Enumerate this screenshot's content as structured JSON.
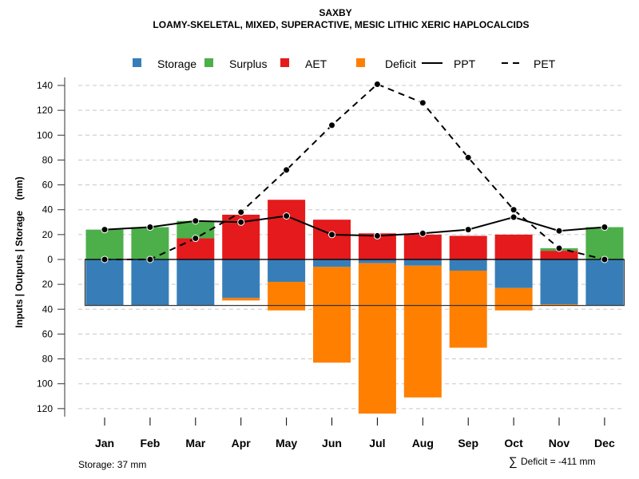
{
  "chart_data": {
    "type": "bar",
    "title": "SAXBY",
    "subtitle": "LOAMY-SKELETAL, MIXED, SUPERACTIVE, MESIC LITHIC XERIC HAPLOCALCIDS",
    "ylabel": "Inputs | Outputs | Storage    (mm)",
    "xlabel": "",
    "ylim": [
      -120,
      140
    ],
    "yticks": [
      140,
      120,
      100,
      80,
      60,
      40,
      20,
      0,
      -20,
      -40,
      -60,
      -80,
      -100,
      -120
    ],
    "ytick_labels": [
      "140",
      "120",
      "100",
      "80",
      "60",
      "40",
      "20",
      "0",
      "20",
      "40",
      "60",
      "80",
      "100",
      "120"
    ],
    "grid": true,
    "legend_position": "top",
    "legend": [
      {
        "name": "Storage",
        "type": "box",
        "color": "#377EB8"
      },
      {
        "name": "Surplus",
        "type": "box",
        "color": "#4DAF4A"
      },
      {
        "name": "AET",
        "type": "box",
        "color": "#E41A1C"
      },
      {
        "name": "Deficit",
        "type": "box",
        "color": "#FF7F00"
      },
      {
        "name": "PPT",
        "type": "solid-line",
        "color": "#000000"
      },
      {
        "name": "PET",
        "type": "dashed-line",
        "color": "#000000"
      }
    ],
    "categories": [
      "Jan",
      "Feb",
      "Mar",
      "Apr",
      "May",
      "Jun",
      "Jul",
      "Aug",
      "Sep",
      "Oct",
      "Nov",
      "Dec"
    ],
    "series": [
      {
        "name": "AET",
        "values": [
          0,
          0,
          17,
          36,
          48,
          32,
          21,
          20,
          19,
          20,
          7,
          0
        ]
      },
      {
        "name": "Surplus",
        "values": [
          24,
          26,
          14,
          0,
          0,
          0,
          0,
          0,
          0,
          0,
          2,
          26
        ]
      },
      {
        "name": "Storage",
        "values": [
          37,
          37,
          37,
          31,
          18,
          6,
          3,
          5,
          9,
          23,
          36,
          37
        ]
      },
      {
        "name": "Deficit",
        "values": [
          0,
          0,
          0,
          -2,
          -23,
          -77,
          -121,
          -106,
          -62,
          -18,
          -1,
          0
        ]
      },
      {
        "name": "PPT",
        "values": [
          24,
          26,
          31,
          30,
          35,
          20,
          19,
          21,
          24,
          34,
          23,
          26
        ]
      },
      {
        "name": "PET",
        "values": [
          0,
          0,
          17,
          38,
          72,
          108,
          141,
          126,
          82,
          40,
          9,
          0
        ]
      }
    ],
    "storage_capacity": 37,
    "annotations": {
      "storage": "Storage: 37 mm",
      "deficit_sum": "Deficit = -411 mm",
      "sigma": "∑"
    }
  }
}
